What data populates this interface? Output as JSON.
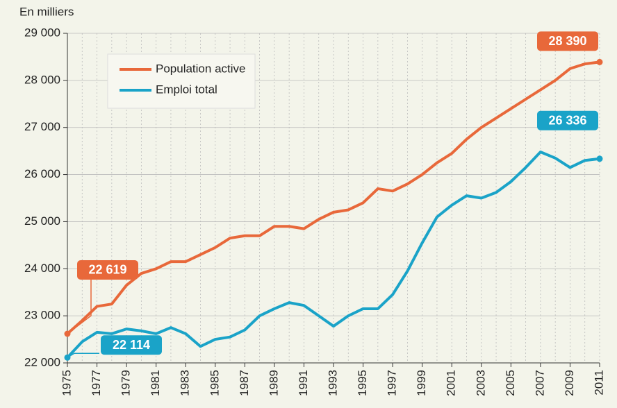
{
  "chart_data": {
    "type": "line",
    "y_axis_label": "En milliers",
    "x": [
      1975,
      1976,
      1977,
      1978,
      1979,
      1980,
      1981,
      1982,
      1983,
      1984,
      1985,
      1986,
      1987,
      1988,
      1989,
      1990,
      1991,
      1992,
      1993,
      1994,
      1995,
      1996,
      1997,
      1998,
      1999,
      2000,
      2001,
      2002,
      2003,
      2004,
      2005,
      2006,
      2007,
      2008,
      2009,
      2010,
      2011
    ],
    "series": [
      {
        "name": "Population active",
        "color": "#e8683a",
        "values": [
          22619,
          22900,
          23200,
          23250,
          23650,
          23900,
          24000,
          24150,
          24150,
          24300,
          24450,
          24650,
          24700,
          24700,
          24900,
          24900,
          24850,
          25050,
          25200,
          25250,
          25400,
          25700,
          25650,
          25800,
          26000,
          26250,
          26450,
          26750,
          27000,
          27200,
          27400,
          27600,
          27800,
          28000,
          28250,
          28350,
          28390
        ],
        "value_labels": [
          "22 619",
          null,
          null,
          null,
          null,
          null,
          null,
          null,
          null,
          null,
          null,
          null,
          null,
          null,
          null,
          null,
          null,
          null,
          null,
          null,
          null,
          null,
          null,
          null,
          null,
          null,
          null,
          null,
          null,
          null,
          null,
          null,
          null,
          null,
          null,
          null,
          "28 390"
        ]
      },
      {
        "name": "Emploi total",
        "color": "#1aa3c8",
        "values": [
          22114,
          22450,
          22650,
          22620,
          22720,
          22680,
          22620,
          22750,
          22620,
          22350,
          22500,
          22550,
          22700,
          23000,
          23150,
          23280,
          23220,
          23000,
          22780,
          23000,
          23150,
          23150,
          23450,
          23950,
          24550,
          25100,
          25350,
          25550,
          25500,
          25620,
          25850,
          26150,
          26480,
          26350,
          26150,
          26300,
          26336
        ],
        "value_labels": [
          "22 114",
          null,
          null,
          null,
          null,
          null,
          null,
          null,
          null,
          null,
          null,
          null,
          null,
          null,
          null,
          null,
          null,
          null,
          null,
          null,
          null,
          null,
          null,
          null,
          null,
          null,
          null,
          null,
          null,
          null,
          null,
          null,
          null,
          null,
          null,
          null,
          "26 336"
        ]
      }
    ],
    "xlim": [
      1975,
      2011
    ],
    "xticks": [
      1975,
      1977,
      1979,
      1981,
      1983,
      1985,
      1987,
      1989,
      1991,
      1993,
      1995,
      1997,
      1999,
      2001,
      2003,
      2005,
      2007,
      2009,
      2011
    ],
    "ylim": [
      22000,
      29000
    ],
    "yticks": [
      {
        "value": 22000,
        "label": "22 000"
      },
      {
        "value": 23000,
        "label": "23 000"
      },
      {
        "value": 24000,
        "label": "24 000"
      },
      {
        "value": 25000,
        "label": "25 000"
      },
      {
        "value": 26000,
        "label": "26 000"
      },
      {
        "value": 27000,
        "label": "27 000"
      },
      {
        "value": 28000,
        "label": "28 000"
      },
      {
        "value": 29000,
        "label": "29 000"
      }
    ],
    "grid": true,
    "legend": "upper left"
  }
}
